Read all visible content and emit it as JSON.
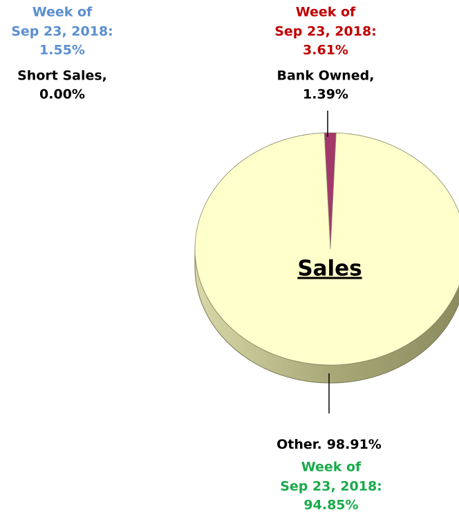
{
  "chart_data": {
    "type": "pie",
    "title": "Sales",
    "categories": [
      "Short Sales,",
      "Bank Owned,",
      "Other."
    ],
    "values": [
      0,
      1.39,
      98.91
    ],
    "value_labels": [
      "0.00%",
      "1.39%",
      "98.91%"
    ],
    "colors": [
      "#5b8fd0",
      "#a3386b",
      "#ffffcc"
    ],
    "comparison": {
      "label": [
        "Week of",
        "Sep 23, 2018:"
      ],
      "values": [
        1.55,
        3.61,
        94.85
      ],
      "value_labels": [
        "1.55%",
        "3.61%",
        "94.85%"
      ],
      "colors": [
        "#5b8fd0",
        "#c00000",
        "#1aaa4c"
      ]
    }
  }
}
